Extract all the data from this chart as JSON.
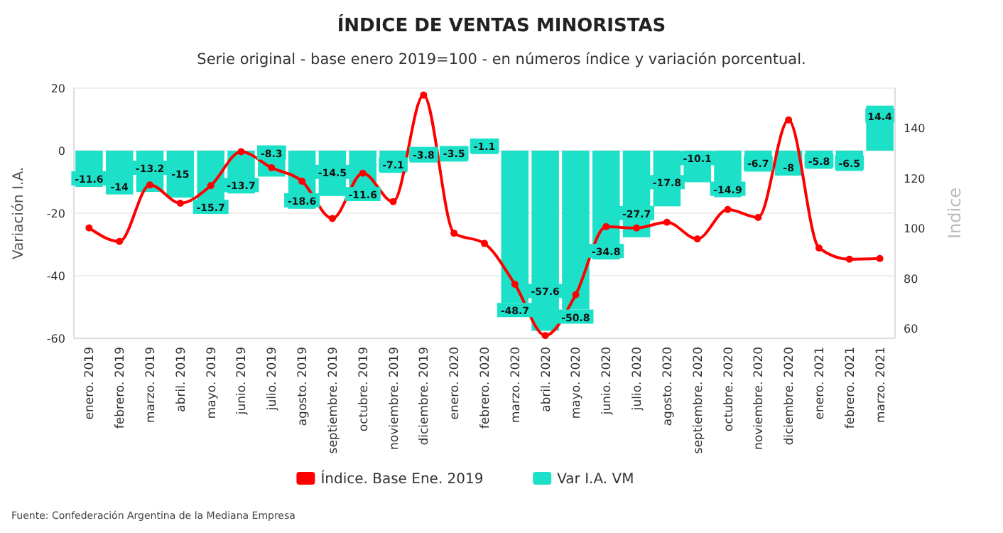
{
  "chart_data": {
    "type": "bar",
    "title": "ÍNDICE DE VENTAS MINORISTAS",
    "subtitle": "Serie original - base enero 2019=100 - en números índice y variación porcentual.",
    "ylabel": "Variación I.A.",
    "y2label": "Indice",
    "categories": [
      "enero. 2019",
      "febrero. 2019",
      "marzo. 2019",
      "abril. 2019",
      "mayo. 2019",
      "junio. 2019",
      "julio. 2019",
      "agosto. 2019",
      "septiembre. 2019",
      "octubre. 2019",
      "noviembre. 2019",
      "diciembre. 2019",
      "enero. 2020",
      "febrero. 2020",
      "marzo. 2020",
      "abril. 2020",
      "mayo. 2020",
      "junio. 2020",
      "julio. 2020",
      "agosto. 2020",
      "septiembre. 2020",
      "octubre. 2020",
      "noviembre. 2020",
      "diciembre. 2020",
      "enero. 2021",
      "febrero. 2021",
      "marzo. 2021"
    ],
    "series": [
      {
        "name": "Índice. Base Ene. 2019",
        "type": "line",
        "axis": "y2",
        "color": "#ff0000",
        "values": [
          100.1,
          94.7,
          117.3,
          110,
          117,
          130.6,
          124.2,
          118.8,
          103.9,
          122,
          110.6,
          153.2,
          98,
          93.9,
          77.6,
          57.1,
          73.4,
          100.6,
          100.1,
          102.4,
          95.7,
          107.5,
          104.3,
          143.3,
          92.1,
          87.6,
          87.9
        ]
      },
      {
        "name": "Var I.A. VM",
        "color": "#1de0c8",
        "values": [
          -11.6,
          -14,
          -13.2,
          -15,
          -15.7,
          -13.7,
          -8.3,
          -18.6,
          -14.5,
          -11.6,
          -7.1,
          -3.8,
          -3.5,
          -1.1,
          -48.7,
          -57.6,
          -50.8,
          -34.8,
          -27.7,
          -17.8,
          -10.1,
          -14.9,
          -6.7,
          -8,
          -5.8,
          -6.5,
          14.4
        ],
        "value_labels": [
          "-11.6",
          "-14",
          "-13.2",
          "-15",
          "-15.7",
          "-13.7",
          "-8.3",
          "-18.6",
          "-14.5",
          "-11.6",
          "-7.1",
          "-3.8",
          "-3.5",
          "-1.1",
          "-48.7",
          "-57.6",
          "-50.8",
          "-34.8",
          "-27.7",
          "-17.8",
          "-10.1",
          "-14.9",
          "-6.7",
          "-8",
          "-5.8",
          "-6.5",
          "14.4"
        ]
      }
    ],
    "ylim": [
      -60,
      20
    ],
    "yticks": [
      -60,
      -40,
      -20,
      0,
      20
    ],
    "y2lim": [
      56,
      156
    ],
    "y2ticks": [
      60,
      80,
      100,
      120,
      140
    ],
    "grid": "y",
    "legend": "bottom",
    "marker": "circle",
    "line_style": "solid",
    "annotations": [
      "Fuente: Confederación Argentina de la Mediana Empresa"
    ]
  }
}
